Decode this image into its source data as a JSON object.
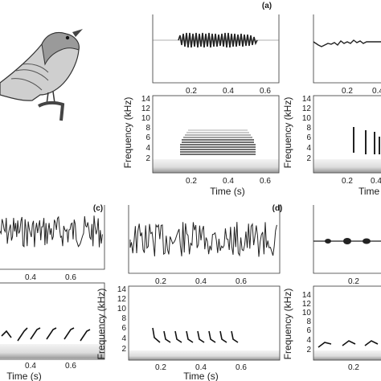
{
  "panels": [
    {
      "id": "a",
      "label": "(a)",
      "wave_ticks": [
        "0.2",
        "0.4",
        "0.6"
      ],
      "spec_ticks": [
        "0.2",
        "0.4",
        "0.6"
      ],
      "freq_ticks": [
        "14",
        "12",
        "10",
        "8",
        "6",
        "4",
        "2"
      ]
    },
    {
      "id": "b",
      "label": "",
      "wave_ticks": [
        "0.2",
        "0.4"
      ],
      "spec_ticks": [
        "0.2",
        "0.4"
      ],
      "freq_ticks": [
        "14",
        "12",
        "10",
        "8",
        "6",
        "4",
        "2"
      ]
    },
    {
      "id": "c",
      "label": "(c)",
      "wave_ticks": [
        "0.4",
        "0.6"
      ],
      "spec_ticks": [
        "0.4",
        "0.6"
      ],
      "freq_ticks": []
    },
    {
      "id": "d",
      "label": "(d)",
      "wave_ticks": [
        "0.2",
        "0.4",
        "0.6"
      ],
      "spec_ticks": [
        "0.2",
        "0.4",
        "0.6"
      ],
      "freq_ticks": [
        "14",
        "12",
        "10",
        "8",
        "6",
        "4",
        "2"
      ]
    },
    {
      "id": "e",
      "label": "",
      "wave_ticks": [
        "0.2"
      ],
      "spec_ticks": [
        "0.2"
      ],
      "freq_ticks": [
        "14",
        "12",
        "10",
        "8",
        "6",
        "4",
        "2"
      ]
    }
  ],
  "axis": {
    "freq_label": "Frequency (kHz)",
    "time_label": "Time (s)",
    "time_label_short": "Time"
  },
  "illustration": {
    "subject": "bird-sketch"
  }
}
